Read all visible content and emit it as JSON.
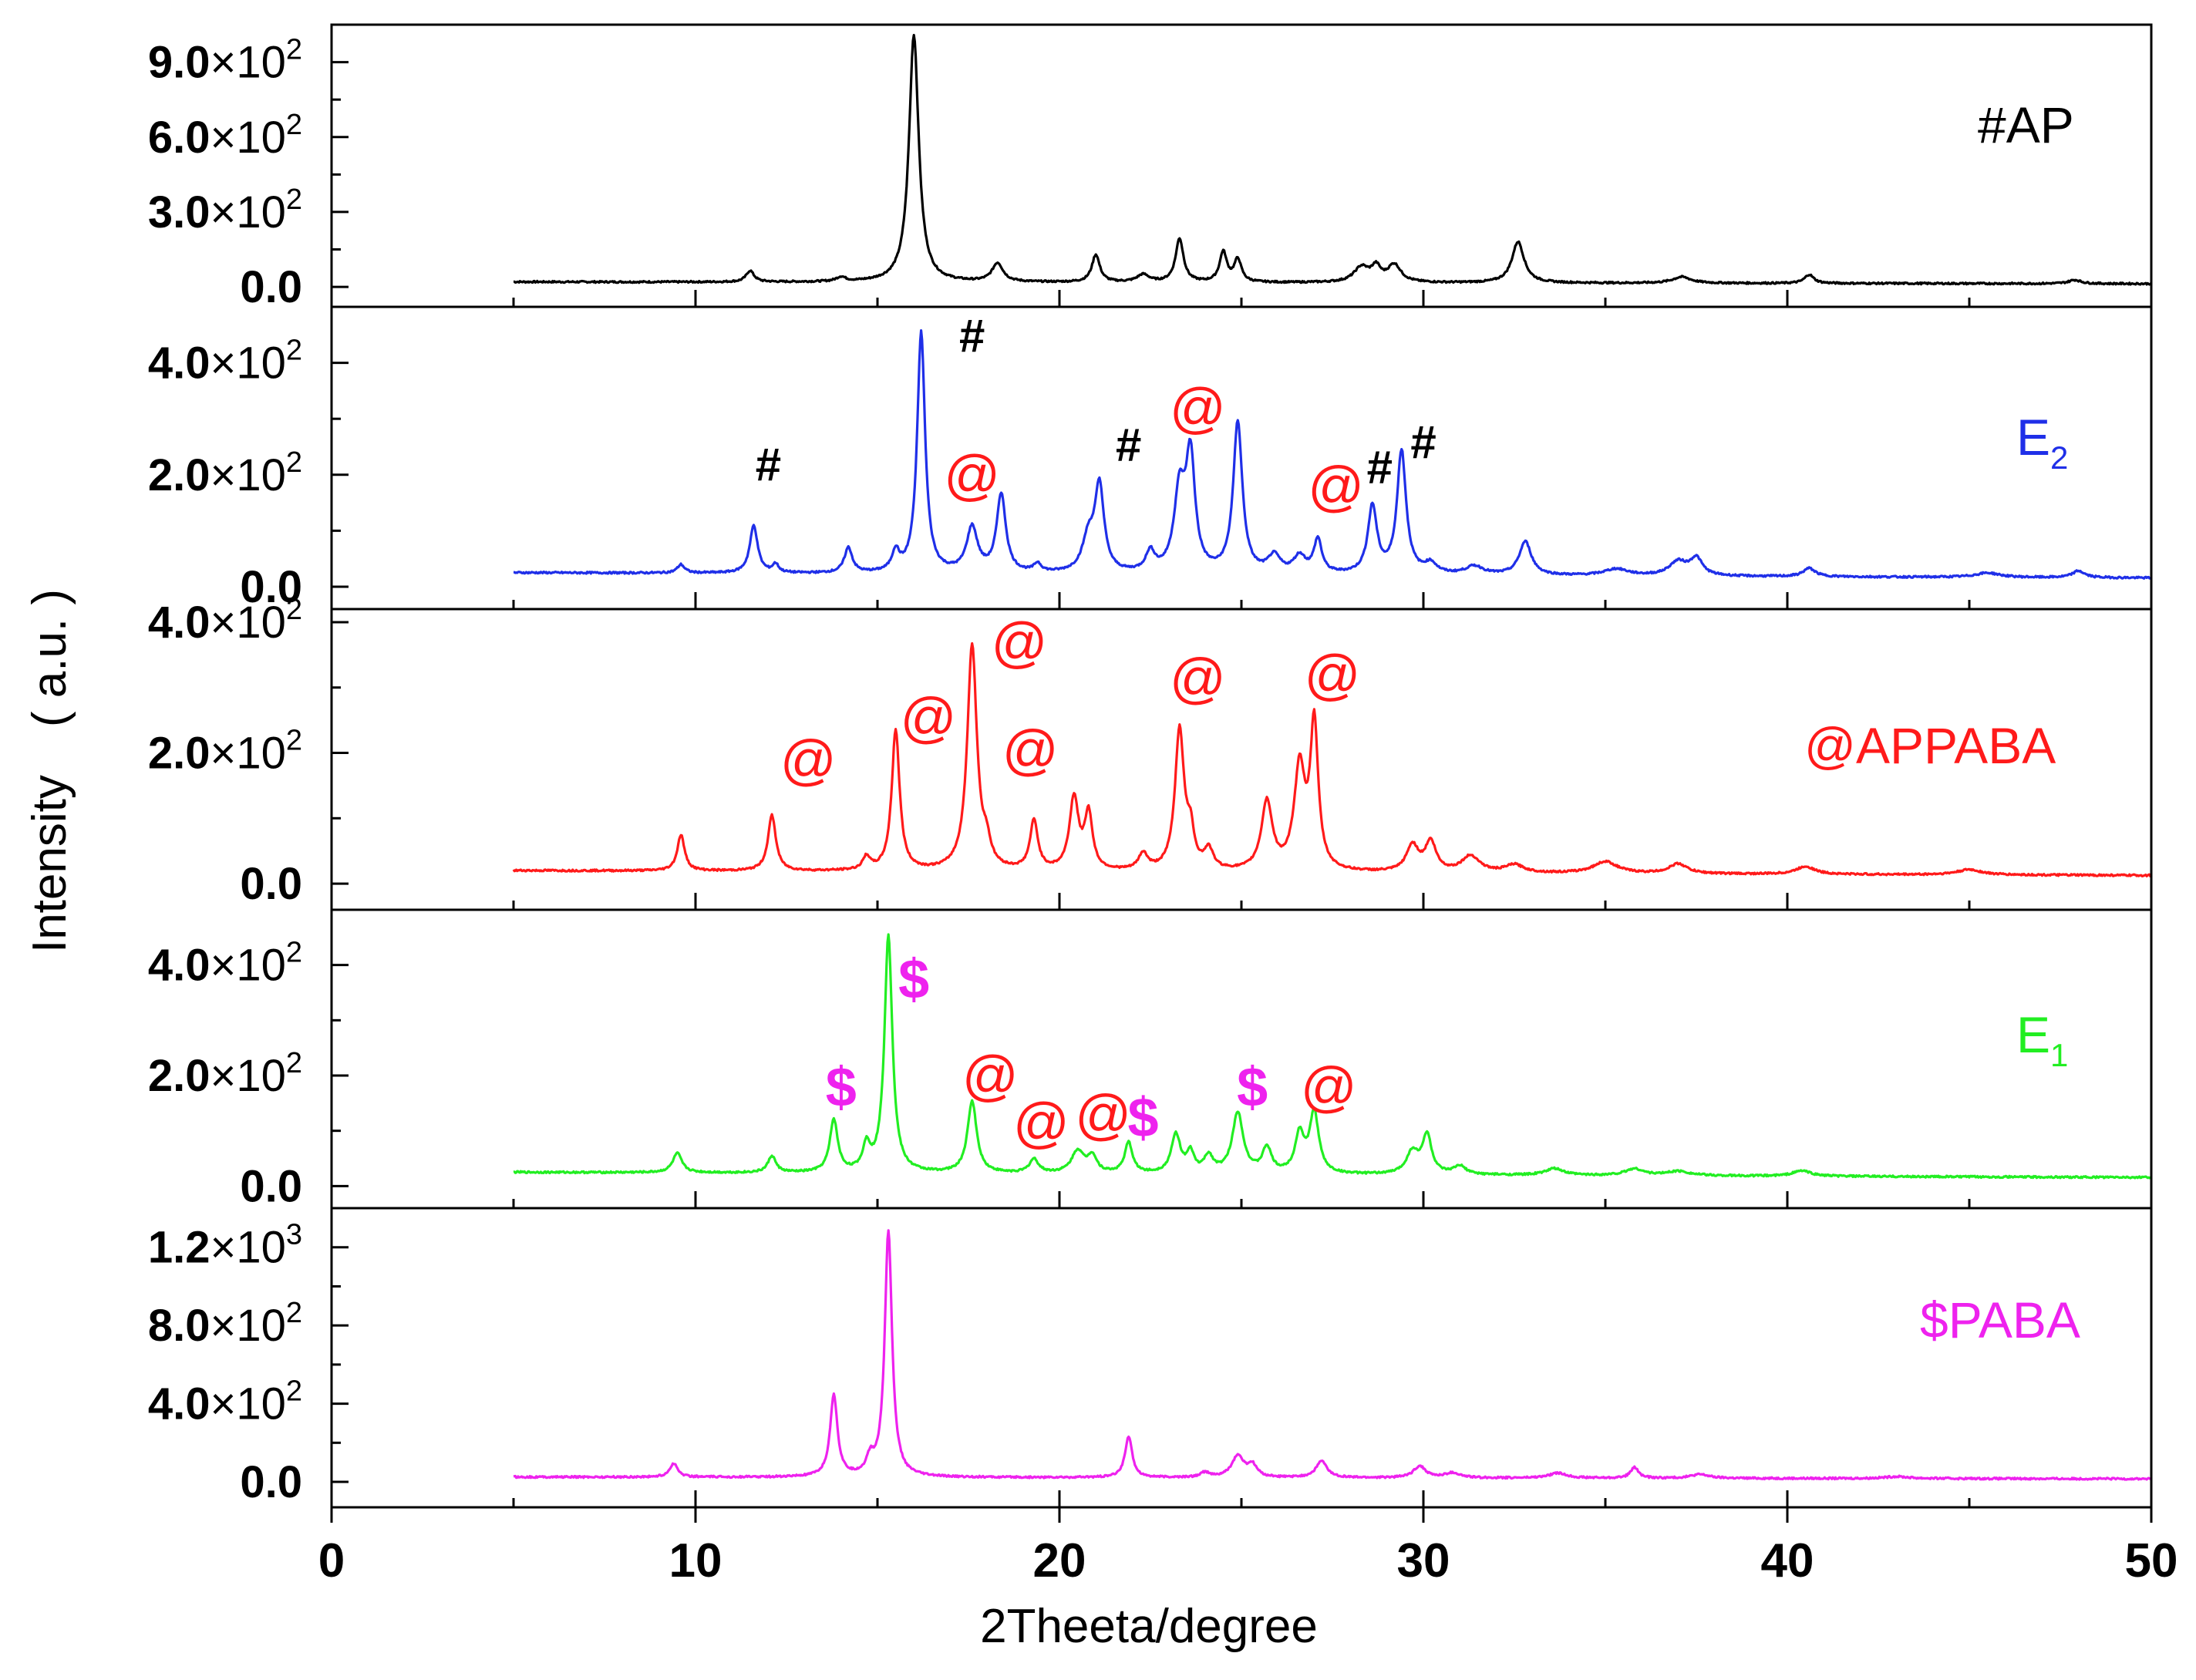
{
  "chart_data": {
    "type": "line",
    "xlabel": "2Theeta/degree",
    "ylabel": "Intensity　( a.u. )",
    "xlim": [
      0,
      50
    ],
    "xticks": [
      0,
      10,
      20,
      30,
      40,
      50
    ],
    "xtick_labels": [
      "0",
      "10",
      "20",
      "30",
      "40",
      "50"
    ],
    "panels": [
      {
        "name": "#AP",
        "legend_symbol": "#",
        "legend_text": "AP",
        "color": "#000000",
        "ylim": [
          -80,
          1050
        ],
        "yticks": [
          {
            "value": 0,
            "mant": "0.0",
            "exp": ""
          },
          {
            "value": 300,
            "mant": "3.0",
            "exp": "2"
          },
          {
            "value": 600,
            "mant": "6.0",
            "exp": "2"
          },
          {
            "value": 900,
            "mant": "9.0",
            "exp": "2"
          }
        ],
        "baseline": 20,
        "peaks": [
          [
            11.5,
            45,
            0.13
          ],
          [
            14.0,
            18,
            0.15
          ],
          [
            16.0,
            990,
            0.16
          ],
          [
            18.3,
            75,
            0.18
          ],
          [
            21.0,
            110,
            0.13
          ],
          [
            22.3,
            30,
            0.2
          ],
          [
            23.3,
            175,
            0.13
          ],
          [
            24.5,
            120,
            0.12
          ],
          [
            24.9,
            90,
            0.12
          ],
          [
            28.3,
            60,
            0.25
          ],
          [
            28.7,
            55,
            0.15
          ],
          [
            29.2,
            70,
            0.22
          ],
          [
            32.6,
            165,
            0.2
          ],
          [
            37.1,
            25,
            0.3
          ],
          [
            40.6,
            35,
            0.15
          ],
          [
            47.9,
            15,
            0.2
          ]
        ],
        "markers": []
      },
      {
        "name": "E2",
        "legend_symbol": "",
        "legend_text": "E",
        "legend_sub": "2",
        "color": "#1f2fe8",
        "ylim": [
          -40,
          500
        ],
        "yticks": [
          {
            "value": 0,
            "mant": "0.0",
            "exp": ""
          },
          {
            "value": 200,
            "mant": "2.0",
            "exp": "2"
          },
          {
            "value": 400,
            "mant": "4.0",
            "exp": "2"
          }
        ],
        "baseline": 25,
        "peaks": [
          [
            9.6,
            15,
            0.12
          ],
          [
            11.6,
            85,
            0.13
          ],
          [
            12.2,
            15,
            0.1
          ],
          [
            14.2,
            45,
            0.13
          ],
          [
            15.5,
            35,
            0.12
          ],
          [
            16.2,
            430,
            0.13
          ],
          [
            17.6,
            80,
            0.18
          ],
          [
            18.4,
            140,
            0.15
          ],
          [
            19.4,
            15,
            0.12
          ],
          [
            20.8,
            60,
            0.2
          ],
          [
            21.1,
            150,
            0.15
          ],
          [
            22.5,
            35,
            0.15
          ],
          [
            23.3,
            140,
            0.18
          ],
          [
            23.6,
            200,
            0.15
          ],
          [
            24.9,
            270,
            0.15
          ],
          [
            25.9,
            30,
            0.2
          ],
          [
            26.6,
            30,
            0.2
          ],
          [
            27.1,
            60,
            0.13
          ],
          [
            28.6,
            120,
            0.15
          ],
          [
            29.4,
            220,
            0.15
          ],
          [
            30.2,
            18,
            0.2
          ],
          [
            31.4,
            15,
            0.3
          ],
          [
            32.8,
            60,
            0.2
          ],
          [
            35.3,
            12,
            0.4
          ],
          [
            37.0,
            25,
            0.3
          ],
          [
            37.5,
            30,
            0.2
          ],
          [
            40.6,
            15,
            0.2
          ],
          [
            45.5,
            8,
            0.4
          ],
          [
            48.0,
            12,
            0.2
          ]
        ],
        "markers": [
          {
            "symbol": "#",
            "x": 12.0,
            "y": 190,
            "color": "#000000"
          },
          {
            "symbol": "@",
            "x": 17.6,
            "y": 165,
            "color": "#ff1a1a"
          },
          {
            "symbol": "#",
            "x": 17.6,
            "y": 420,
            "color": "#000000"
          },
          {
            "symbol": "#",
            "x": 21.9,
            "y": 225,
            "color": "#000000"
          },
          {
            "symbol": "@",
            "x": 23.8,
            "y": 285,
            "color": "#ff1a1a"
          },
          {
            "symbol": "@",
            "x": 27.6,
            "y": 145,
            "color": "#ff1a1a"
          },
          {
            "symbol": "#",
            "x": 28.8,
            "y": 185,
            "color": "#000000"
          },
          {
            "symbol": "#",
            "x": 30.0,
            "y": 230,
            "color": "#000000"
          }
        ]
      },
      {
        "name": "@APPABA",
        "legend_symbol": "@",
        "legend_text": "APPABA",
        "color": "#ff1a1a",
        "ylim": [
          -40,
          420
        ],
        "yticks": [
          {
            "value": 0,
            "mant": "0.0",
            "exp": ""
          },
          {
            "value": 200,
            "mant": "2.0",
            "exp": "2"
          },
          {
            "value": 400,
            "mant": "4.0",
            "exp": "2"
          }
        ],
        "baseline": 20,
        "peaks": [
          [
            9.6,
            55,
            0.12
          ],
          [
            12.1,
            85,
            0.13
          ],
          [
            14.7,
            20,
            0.12
          ],
          [
            15.5,
            215,
            0.13
          ],
          [
            17.6,
            345,
            0.16
          ],
          [
            18.0,
            30,
            0.12
          ],
          [
            19.3,
            75,
            0.13
          ],
          [
            20.4,
            110,
            0.15
          ],
          [
            20.8,
            85,
            0.13
          ],
          [
            22.3,
            25,
            0.15
          ],
          [
            23.3,
            215,
            0.15
          ],
          [
            23.6,
            50,
            0.12
          ],
          [
            24.1,
            30,
            0.15
          ],
          [
            25.7,
            105,
            0.18
          ],
          [
            26.6,
            155,
            0.18
          ],
          [
            27.0,
            220,
            0.13
          ],
          [
            29.7,
            40,
            0.2
          ],
          [
            30.2,
            45,
            0.18
          ],
          [
            31.3,
            25,
            0.3
          ],
          [
            32.5,
            12,
            0.3
          ],
          [
            35.0,
            18,
            0.4
          ],
          [
            37.0,
            15,
            0.3
          ],
          [
            40.5,
            12,
            0.3
          ],
          [
            45.0,
            8,
            0.4
          ]
        ],
        "markers": [
          {
            "symbol": "@",
            "x": 13.1,
            "y": 160,
            "color": "#ff1a1a"
          },
          {
            "symbol": "@",
            "x": 16.4,
            "y": 225,
            "color": "#ff1a1a"
          },
          {
            "symbol": "@",
            "x": 18.9,
            "y": 340,
            "color": "#ff1a1a"
          },
          {
            "symbol": "@",
            "x": 19.2,
            "y": 175,
            "color": "#ff1a1a"
          },
          {
            "symbol": "@",
            "x": 23.8,
            "y": 285,
            "color": "#ff1a1a"
          },
          {
            "symbol": "@",
            "x": 27.5,
            "y": 290,
            "color": "#ff1a1a"
          }
        ]
      },
      {
        "name": "E1",
        "legend_symbol": "",
        "legend_text": "E",
        "legend_sub": "1",
        "color": "#22ee22",
        "ylim": [
          -40,
          500
        ],
        "yticks": [
          {
            "value": 0,
            "mant": "0.0",
            "exp": ""
          },
          {
            "value": 200,
            "mant": "2.0",
            "exp": "2"
          },
          {
            "value": 400,
            "mant": "4.0",
            "exp": "2"
          }
        ],
        "baseline": 25,
        "peaks": [
          [
            9.5,
            35,
            0.15
          ],
          [
            12.1,
            30,
            0.13
          ],
          [
            13.8,
            95,
            0.13
          ],
          [
            14.7,
            45,
            0.12
          ],
          [
            15.3,
            430,
            0.13
          ],
          [
            17.6,
            130,
            0.15
          ],
          [
            19.3,
            25,
            0.15
          ],
          [
            20.5,
            40,
            0.2
          ],
          [
            20.9,
            30,
            0.15
          ],
          [
            21.9,
            55,
            0.13
          ],
          [
            23.2,
            70,
            0.15
          ],
          [
            23.6,
            35,
            0.12
          ],
          [
            24.1,
            30,
            0.15
          ],
          [
            24.9,
            110,
            0.18
          ],
          [
            25.7,
            45,
            0.15
          ],
          [
            26.6,
            70,
            0.15
          ],
          [
            27.0,
            110,
            0.15
          ],
          [
            29.7,
            40,
            0.2
          ],
          [
            30.1,
            70,
            0.15
          ],
          [
            31.0,
            15,
            0.2
          ],
          [
            33.6,
            12,
            0.3
          ],
          [
            35.8,
            12,
            0.3
          ],
          [
            37.0,
            8,
            0.4
          ],
          [
            40.4,
            10,
            0.3
          ]
        ],
        "markers": [
          {
            "symbol": "$",
            "x": 14.0,
            "y": 145,
            "color": "#ee22ee"
          },
          {
            "symbol": "$",
            "x": 16.0,
            "y": 340,
            "color": "#ee22ee"
          },
          {
            "symbol": "@",
            "x": 18.1,
            "y": 165,
            "color": "#ff1a1a"
          },
          {
            "symbol": "@",
            "x": 19.5,
            "y": 80,
            "color": "#ff1a1a"
          },
          {
            "symbol": "@",
            "x": 21.2,
            "y": 95,
            "color": "#ff1a1a"
          },
          {
            "symbol": "$",
            "x": 22.3,
            "y": 90,
            "color": "#ee22ee"
          },
          {
            "symbol": "$",
            "x": 25.3,
            "y": 145,
            "color": "#ee22ee"
          },
          {
            "symbol": "@",
            "x": 27.4,
            "y": 145,
            "color": "#ff1a1a"
          }
        ]
      },
      {
        "name": "$PABA",
        "legend_symbol": "$",
        "legend_text": "PABA",
        "color": "#ee22ee",
        "ylim": [
          -130,
          1400
        ],
        "yticks": [
          {
            "value": 0,
            "mant": "0.0",
            "exp": ""
          },
          {
            "value": 400,
            "mant": "4.0",
            "exp": "2"
          },
          {
            "value": 800,
            "mant": "8.0",
            "exp": "2"
          },
          {
            "value": 1200,
            "mant": "1.2",
            "exp": "3"
          }
        ],
        "baseline": 25,
        "peaks": [
          [
            9.4,
            70,
            0.13
          ],
          [
            13.8,
            420,
            0.12
          ],
          [
            14.8,
            80,
            0.12
          ],
          [
            15.3,
            1260,
            0.12
          ],
          [
            21.9,
            210,
            0.12
          ],
          [
            24.0,
            25,
            0.15
          ],
          [
            24.9,
            110,
            0.2
          ],
          [
            25.3,
            60,
            0.15
          ],
          [
            27.2,
            85,
            0.18
          ],
          [
            29.9,
            60,
            0.2
          ],
          [
            30.8,
            25,
            0.25
          ],
          [
            33.7,
            25,
            0.3
          ],
          [
            35.8,
            55,
            0.13
          ],
          [
            37.6,
            20,
            0.3
          ],
          [
            43.0,
            10,
            0.4
          ]
        ],
        "markers": []
      }
    ]
  }
}
